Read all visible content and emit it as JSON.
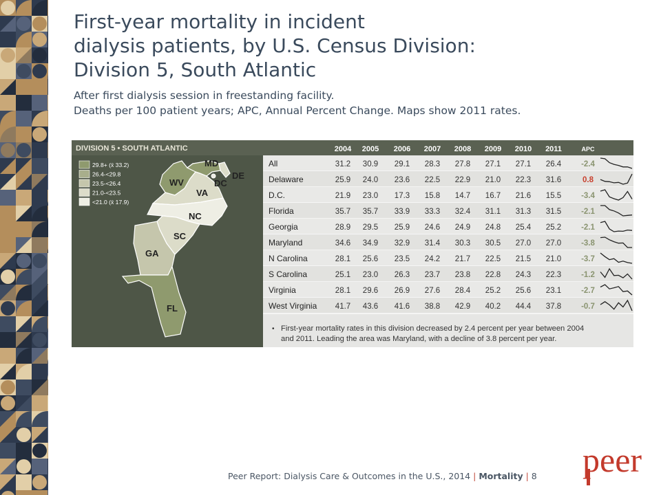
{
  "title_lines": [
    "First-year mortality in incident",
    "dialysis patients, by U.S. Census Division:",
    "Division 5, South Atlantic"
  ],
  "subtitle_lines": [
    "After first dialysis session in freestanding facility.",
    "Deaths per 100 patient years; APC, Annual Percent Change. Maps show 2011 rates."
  ],
  "panel_title": "DIVISION 5 • SOUTH ATLANTIC",
  "map": {
    "legend": [
      {
        "label": "29.8+ (x̄ 33.2)",
        "color": "#8f9a6e"
      },
      {
        "label": "26.4-<29.8",
        "color": "#a8ae8c"
      },
      {
        "label": "23.5-<26.4",
        "color": "#c5c6ac"
      },
      {
        "label": "21.0-<23.5",
        "color": "#dcdcc9"
      },
      {
        "label": "<21.0 (x̄ 17.9)",
        "color": "#eeeeE4"
      }
    ],
    "state_labels": [
      "MD",
      "DE",
      "WV",
      "DC",
      "VA",
      "NC",
      "SC",
      "GA",
      "FL"
    ]
  },
  "chart_data": {
    "type": "table",
    "columns": [
      "2004",
      "2005",
      "2006",
      "2007",
      "2008",
      "2009",
      "2010",
      "2011",
      "APC"
    ],
    "rows": [
      {
        "name": "All",
        "values": [
          31.2,
          30.9,
          29.1,
          28.3,
          27.8,
          27.1,
          27.1,
          26.4
        ],
        "apc": "-2.4"
      },
      {
        "name": "Delaware",
        "values": [
          25.9,
          24.0,
          23.6,
          22.5,
          22.9,
          21.0,
          22.3,
          31.6
        ],
        "apc": "0.8"
      },
      {
        "name": "D.C.",
        "values": [
          21.9,
          23.0,
          17.3,
          15.8,
          14.7,
          16.7,
          21.6,
          15.5
        ],
        "apc": "-3.4"
      },
      {
        "name": "Florida",
        "values": [
          35.7,
          35.7,
          33.9,
          33.3,
          32.4,
          31.1,
          31.3,
          31.5
        ],
        "apc": "-2.1"
      },
      {
        "name": "Georgia",
        "values": [
          28.9,
          29.5,
          25.9,
          24.6,
          24.9,
          24.8,
          25.4,
          25.2
        ],
        "apc": "-2.1"
      },
      {
        "name": "Maryland",
        "values": [
          34.6,
          34.9,
          32.9,
          31.4,
          30.3,
          30.5,
          27.0,
          27.0
        ],
        "apc": "-3.8"
      },
      {
        "name": "N Carolina",
        "values": [
          28.1,
          25.6,
          23.5,
          24.2,
          21.7,
          22.5,
          21.5,
          21.0
        ],
        "apc": "-3.7"
      },
      {
        "name": "S Carolina",
        "values": [
          25.1,
          23.0,
          26.3,
          23.7,
          23.8,
          22.8,
          24.3,
          22.3
        ],
        "apc": "-1.2"
      },
      {
        "name": "Virginia",
        "values": [
          28.1,
          29.6,
          26.9,
          27.6,
          28.4,
          25.2,
          25.6,
          23.1
        ],
        "apc": "-2.7"
      },
      {
        "name": "West Virginia",
        "values": [
          41.7,
          43.6,
          41.6,
          38.8,
          42.9,
          40.2,
          44.4,
          37.8
        ],
        "apc": "-0.7"
      }
    ],
    "apc_colors": {
      "negative": "#8a9470",
      "positive": "#c8402e"
    },
    "sparklines": true
  },
  "note_bullet": "•",
  "note_lines": [
    "First-year mortality rates in this division decreased by 2.4 percent per year between 2004",
    "and 2011. Leading the area was Maryland, with a decline of 3.8 percent per year."
  ],
  "footer": {
    "text": "Peer Report: Dialysis Care & Outcomes in the U.S., 2014",
    "sep1": "|",
    "section": "Mortality",
    "sep2": "|",
    "page": "8"
  },
  "logo_text": "peer",
  "colors": {
    "title": "#3a4a5c",
    "panel_bg": "#4e5647",
    "table_bg": "#e6e6e4",
    "table_row_alt": "#ededeb",
    "header_text": "#ffffff",
    "logo": "#c33a2c",
    "accent_red": "#c8402e"
  }
}
